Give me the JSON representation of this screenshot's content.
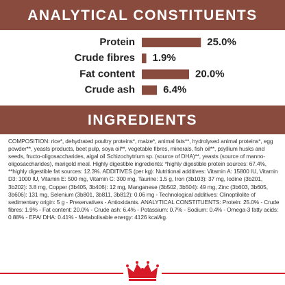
{
  "analytical": {
    "title": "ANALYTICAL CONSTITUENTS",
    "items": [
      {
        "name": "Protein",
        "value": 25,
        "value_label": "25.0%"
      },
      {
        "name": "Crude fibres",
        "value": 1.9,
        "value_label": "1.9%"
      },
      {
        "name": "Fat content",
        "value": 20,
        "value_label": "20.0%"
      },
      {
        "name": "Crude ash",
        "value": 6.4,
        "value_label": "6.4%"
      }
    ]
  },
  "ingredients": {
    "title": "INGREDIENTS",
    "text": "COMPOSITION: rice*, dehydrated poultry proteins*, maize*, animal fats**, hydrolysed animal proteins*, egg powder**, yeasts products, beet pulp, soya oil**, vegetable fibres, minerals, fish oil**, psyllium husks and seeds, fructo-oligosaccharides, algal oil Schizochytrium sp. (source of DHA)**, yeasts (source of manno-oligosaccharides), marigold meal. Highly digestible ingredients: *highly digestible protein sources: 67.4%, **highly digestible fat sources: 12.3%. ADDITIVES (per kg): Nutritional additives: Vitamin A: 15800 IU, Vitamin D3: 1000 IU, Vitamin E: 500 mg, Vitamin C: 300 mg, Taurine: 1.5 g, Iron (3b103): 37 mg, Iodine (3b201, 3b202): 3.8 mg, Copper (3b405, 3b406): 12 mg, Manganese (3b502, 3b504): 49 mg, Zinc (3b603, 3b605, 3b606): 131 mg, Selenium (3b801, 3b811, 3b812): 0.06 mg - Technological additives: Clinoptilolite of sedimentary origin: 5 g - Preservatives - Antioxidants. ANALYTICAL CONSTITUENTS: Protein: 25.0% - Crude fibres: 1.9% - Fat content: 20.0% - Crude ash: 6.4% - Potassium: 0.7% - Sodium: 0.4% - Omega-3 fatty acids: 0.88% - EPA/ DHA: 0.41% - Metabolisable energy: 4126 kcal/kg."
  }
}
